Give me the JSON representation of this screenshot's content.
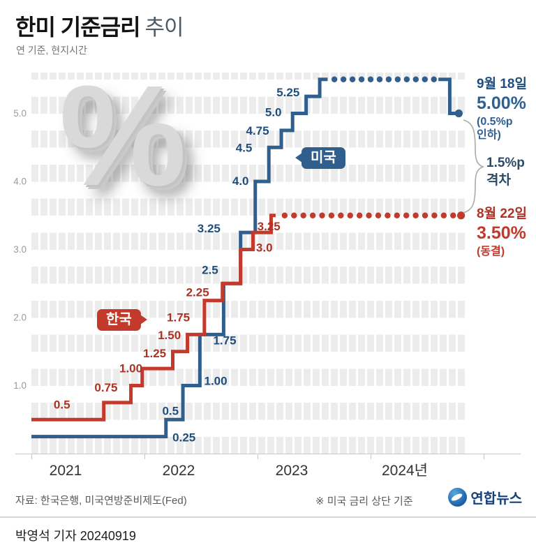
{
  "header": {
    "title_strong": "한미 기준금리",
    "title_light": "추이",
    "subtitle": "연 기준, 현지시간"
  },
  "watermark": {
    "symbol": "%"
  },
  "badges": {
    "us": "미국",
    "kr": "한국"
  },
  "annotations": {
    "us": {
      "date": "9월 18일",
      "rate": "5.00%",
      "note1": "(0.5%p",
      "note2": "인하)"
    },
    "gap": {
      "line1": "1.5%p",
      "line2": "격차"
    },
    "kr": {
      "date": "8월 22일",
      "rate": "3.50%",
      "note": "(동결)"
    }
  },
  "footer": {
    "source": "자료: 한국은행, 미국연방준비제도(Fed)",
    "note": "※ 미국 금리 상단 기준",
    "logo": "연합뉴스",
    "byline": "박영석 기자 20240919"
  },
  "chart_data": {
    "type": "line",
    "title": "한미 기준금리 추이",
    "unit": "%",
    "x_range": [
      2021.0,
      2024.85
    ],
    "y_max": 5.6,
    "grid": "striped-bands",
    "x_ticks": [
      {
        "year": 2021,
        "label": "2021"
      },
      {
        "year": 2022,
        "label": "2022"
      },
      {
        "year": 2023,
        "label": "2023"
      },
      {
        "year": 2024,
        "label": "2024년"
      }
    ],
    "y_ticks": [
      {
        "v": 1.0,
        "label": "1.0"
      },
      {
        "v": 2.0,
        "label": "2.0"
      },
      {
        "v": 3.0,
        "label": "3.0"
      },
      {
        "v": 4.0,
        "label": "4.0"
      },
      {
        "v": 5.0,
        "label": "5.0"
      }
    ],
    "series": [
      {
        "id": "us",
        "name": "미국",
        "color": "#305f8e",
        "label_color": "#1f4e7d",
        "steps": [
          [
            2021.0,
            0.25
          ],
          [
            2022.19,
            0.5
          ],
          [
            2022.34,
            1.0
          ],
          [
            2022.49,
            1.75
          ],
          [
            2022.7,
            2.5
          ],
          [
            2022.85,
            3.25
          ],
          [
            2022.98,
            4.0
          ],
          [
            2023.1,
            4.5
          ],
          [
            2023.21,
            4.75
          ],
          [
            2023.31,
            5.0
          ],
          [
            2023.43,
            5.25
          ],
          [
            2023.55,
            5.5
          ]
        ],
        "solid_until": 2023.62,
        "hold_dots": {
          "value": 5.5,
          "from": 2023.68,
          "to": 2024.56,
          "count": 12
        },
        "tail": {
          "resume": 2024.6,
          "drop_at": 2024.7,
          "drop_to": 5.0,
          "end": 2024.78
        },
        "end_marker": [
          2024.78,
          5.0
        ],
        "labels": [
          {
            "t": "0.25",
            "x": 2022.35,
            "v": 0.25,
            "dy": 1
          },
          {
            "t": "0.5",
            "x": 2022.23,
            "v": 0.5,
            "dy": -13
          },
          {
            "t": "1.00",
            "x": 2022.63,
            "v": 1.0,
            "dy": -7
          },
          {
            "t": "1.75",
            "x": 2022.71,
            "v": 1.75,
            "dy": 8
          },
          {
            "t": "2.5",
            "x": 2022.58,
            "v": 2.5,
            "dy": -20
          },
          {
            "t": "3.25",
            "x": 2022.57,
            "v": 3.25,
            "dy": -6
          },
          {
            "t": "4.0",
            "x": 2022.85,
            "v": 4.0,
            "dy": -1
          },
          {
            "t": "4.5",
            "x": 2022.88,
            "v": 4.5,
            "dy": 0
          },
          {
            "t": "4.75",
            "x": 2023.0,
            "v": 4.75,
            "dy": 0
          },
          {
            "t": "5.0",
            "x": 2023.14,
            "v": 5.0,
            "dy": -2
          },
          {
            "t": "5.25",
            "x": 2023.27,
            "v": 5.25,
            "dy": -6
          }
        ]
      },
      {
        "id": "kr",
        "name": "한국",
        "color": "#c23a2b",
        "label_color": "#ad3224",
        "steps": [
          [
            2021.0,
            0.5
          ],
          [
            2021.64,
            0.75
          ],
          [
            2021.88,
            1.0
          ],
          [
            2021.98,
            1.25
          ],
          [
            2022.25,
            1.5
          ],
          [
            2022.38,
            1.75
          ],
          [
            2022.53,
            2.25
          ],
          [
            2022.69,
            2.5
          ],
          [
            2022.85,
            3.0
          ],
          [
            2022.96,
            3.25
          ],
          [
            2023.12,
            3.5
          ]
        ],
        "solid_until": 2023.16,
        "hold_dots": {
          "value": 3.5,
          "from": 2023.24,
          "to": 2024.73,
          "count": 19
        },
        "end_marker": [
          2024.8,
          3.5
        ],
        "labels": [
          {
            "t": "0.5",
            "x": 2021.27,
            "v": 0.5,
            "dy": -22
          },
          {
            "t": "0.75",
            "x": 2021.66,
            "v": 0.75,
            "dy": -22
          },
          {
            "t": "1.00",
            "x": 2021.88,
            "v": 1.0,
            "dy": -25
          },
          {
            "t": "1.25",
            "x": 2022.09,
            "v": 1.25,
            "dy": -22
          },
          {
            "t": "1.50",
            "x": 2022.22,
            "v": 1.5,
            "dy": -24
          },
          {
            "t": "1.75",
            "x": 2022.3,
            "v": 1.75,
            "dy": -25
          },
          {
            "t": "2.25",
            "x": 2022.47,
            "v": 2.25,
            "dy": -12
          },
          {
            "t": "3.0",
            "x": 2023.06,
            "v": 3.0,
            "dy": -3
          },
          {
            "t": "3.25",
            "x": 2023.1,
            "v": 3.25,
            "dy": -9
          }
        ]
      }
    ]
  }
}
